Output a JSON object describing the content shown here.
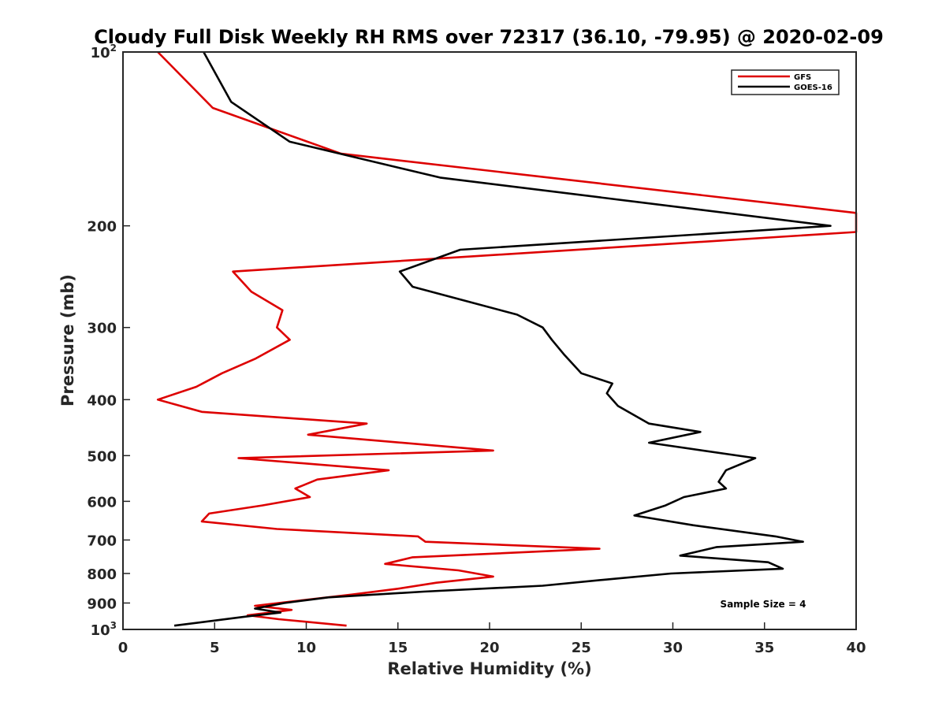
{
  "chart_data": {
    "type": "line",
    "title": "Cloudy Full Disk Weekly RH RMS over 72317 (36.10, -79.95) @ 2020-02-09",
    "xlabel": "Relative Humidity (%)",
    "ylabel": "Pressure (mb)",
    "xlim": [
      0,
      40
    ],
    "ylim": [
      100,
      1000
    ],
    "y_scale": "log",
    "y_reversed": true,
    "grid": false,
    "legend_position": "top-right",
    "x_ticks": [
      "0",
      "5",
      "10",
      "15",
      "20",
      "25",
      "30",
      "35",
      "40"
    ],
    "y_ticks": [
      {
        "value": 100,
        "label": "10",
        "sup": "2"
      },
      {
        "value": 200,
        "label": "200",
        "sup": ""
      },
      {
        "value": 300,
        "label": "300",
        "sup": ""
      },
      {
        "value": 400,
        "label": "400",
        "sup": ""
      },
      {
        "value": 500,
        "label": "500",
        "sup": ""
      },
      {
        "value": 600,
        "label": "600",
        "sup": ""
      },
      {
        "value": 700,
        "label": "700",
        "sup": ""
      },
      {
        "value": 800,
        "label": "800",
        "sup": ""
      },
      {
        "value": 900,
        "label": "900",
        "sup": ""
      },
      {
        "value": 1000,
        "label": "10",
        "sup": "3"
      }
    ],
    "annotation": "Sample Size = 4",
    "series": [
      {
        "name": "GFS",
        "color": "#dd0000",
        "points": [
          [
            1.9,
            100
          ],
          [
            4.9,
            125
          ],
          [
            11.9,
            150
          ],
          [
            40,
            190
          ],
          [
            40,
            205
          ],
          [
            6.0,
            240
          ],
          [
            7.0,
            260
          ],
          [
            8.7,
            280
          ],
          [
            8.4,
            300
          ],
          [
            9.1,
            315
          ],
          [
            7.2,
            340
          ],
          [
            5.4,
            360
          ],
          [
            4.0,
            380
          ],
          [
            1.9,
            400
          ],
          [
            4.3,
            420
          ],
          [
            13.3,
            440
          ],
          [
            10.1,
            460
          ],
          [
            20.2,
            490
          ],
          [
            6.3,
            505
          ],
          [
            14.5,
            530
          ],
          [
            10.6,
            550
          ],
          [
            9.4,
            570
          ],
          [
            10.2,
            590
          ],
          [
            7.6,
            610
          ],
          [
            4.7,
            630
          ],
          [
            4.3,
            650
          ],
          [
            8.4,
            670
          ],
          [
            16.1,
            690
          ],
          [
            16.5,
            705
          ],
          [
            26.0,
            725
          ],
          [
            15.8,
            750
          ],
          [
            14.3,
            770
          ],
          [
            18.3,
            790
          ],
          [
            20.2,
            810
          ],
          [
            17.1,
            830
          ],
          [
            15.0,
            850
          ],
          [
            12.5,
            870
          ],
          [
            9.8,
            890
          ],
          [
            7.2,
            910
          ],
          [
            9.2,
            925
          ],
          [
            6.8,
            945
          ],
          [
            8.5,
            960
          ],
          [
            12.2,
            985
          ]
        ]
      },
      {
        "name": "GOES-16",
        "color": "#000000",
        "points": [
          [
            4.4,
            100
          ],
          [
            5.9,
            122
          ],
          [
            9.1,
            143
          ],
          [
            17.3,
            165
          ],
          [
            38.6,
            200
          ],
          [
            18.4,
            220
          ],
          [
            15.1,
            240
          ],
          [
            15.8,
            255
          ],
          [
            21.5,
            285
          ],
          [
            22.9,
            300
          ],
          [
            23.4,
            315
          ],
          [
            24.1,
            335
          ],
          [
            25.0,
            360
          ],
          [
            26.7,
            375
          ],
          [
            26.4,
            390
          ],
          [
            27.0,
            410
          ],
          [
            28.7,
            440
          ],
          [
            31.5,
            455
          ],
          [
            28.7,
            475
          ],
          [
            34.5,
            505
          ],
          [
            32.9,
            530
          ],
          [
            32.5,
            555
          ],
          [
            32.9,
            570
          ],
          [
            30.6,
            590
          ],
          [
            29.6,
            610
          ],
          [
            27.9,
            635
          ],
          [
            31.1,
            660
          ],
          [
            35.6,
            690
          ],
          [
            37.1,
            705
          ],
          [
            32.4,
            720
          ],
          [
            30.4,
            745
          ],
          [
            35.2,
            765
          ],
          [
            36.0,
            785
          ],
          [
            29.9,
            800
          ],
          [
            26.3,
            820
          ],
          [
            22.9,
            840
          ],
          [
            16.4,
            860
          ],
          [
            11.2,
            880
          ],
          [
            8.8,
            900
          ],
          [
            7.2,
            920
          ],
          [
            8.6,
            935
          ],
          [
            6.7,
            950
          ],
          [
            2.8,
            985
          ]
        ]
      }
    ]
  }
}
